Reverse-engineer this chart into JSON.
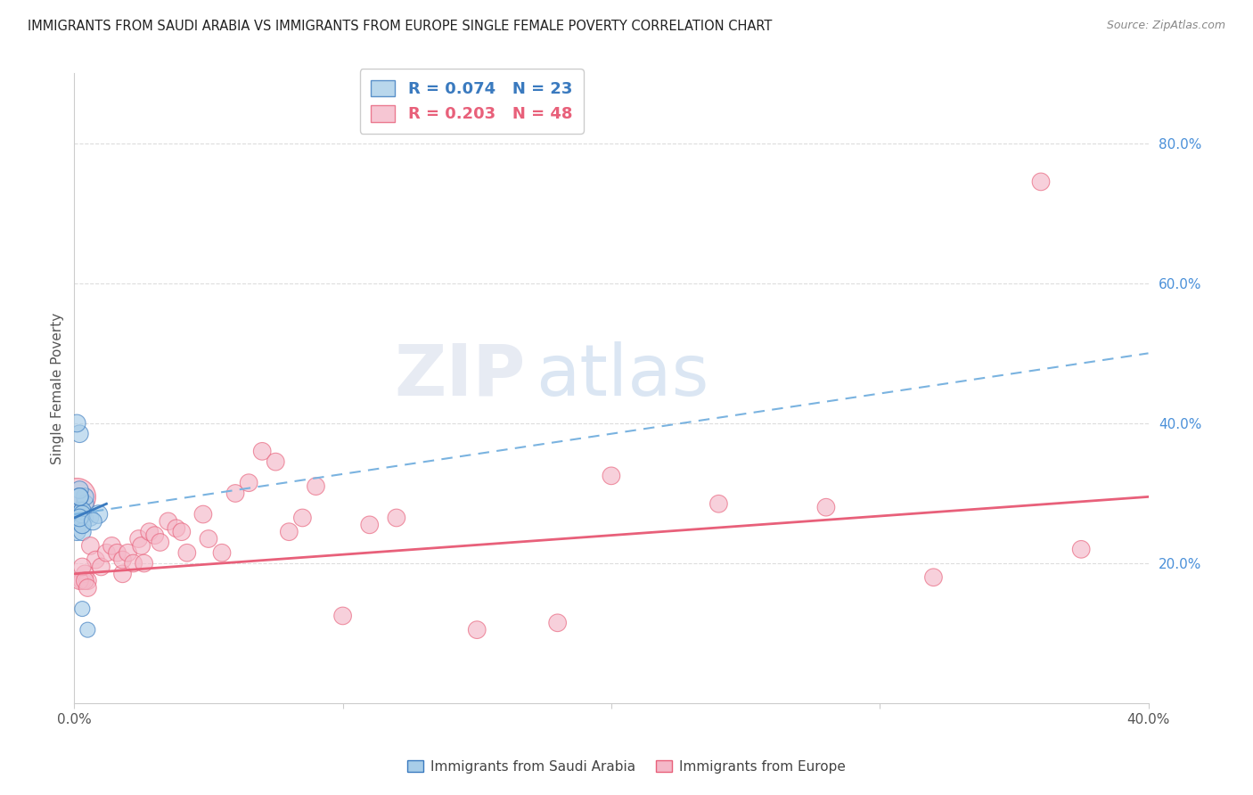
{
  "title": "IMMIGRANTS FROM SAUDI ARABIA VS IMMIGRANTS FROM EUROPE SINGLE FEMALE POVERTY CORRELATION CHART",
  "source": "Source: ZipAtlas.com",
  "ylabel": "Single Female Poverty",
  "y_ticks_right": [
    0.2,
    0.4,
    0.6,
    0.8
  ],
  "y_tick_labels_right": [
    "20.0%",
    "40.0%",
    "60.0%",
    "80.0%"
  ],
  "xlim": [
    0.0,
    0.4
  ],
  "ylim": [
    0.0,
    0.9
  ],
  "legend_entries": [
    {
      "label": "R = 0.074   N = 23",
      "color": "#a8cde8"
    },
    {
      "label": "R = 0.203   N = 48",
      "color": "#f4b8c8"
    }
  ],
  "footer_labels": [
    "Immigrants from Saudi Arabia",
    "Immigrants from Europe"
  ],
  "footer_colors": [
    "#a8cde8",
    "#f4b8c8"
  ],
  "watermark_zip": "ZIP",
  "watermark_atlas": "atlas",
  "blue_scatter_x": [
    0.004,
    0.006,
    0.002,
    0.003,
    0.004,
    0.001,
    0.002,
    0.003,
    0.004,
    0.003,
    0.002,
    0.002,
    0.003,
    0.003,
    0.002,
    0.001,
    0.002,
    0.003,
    0.002,
    0.003,
    0.005,
    0.009,
    0.007
  ],
  "blue_scatter_y": [
    0.265,
    0.265,
    0.275,
    0.275,
    0.285,
    0.245,
    0.265,
    0.255,
    0.295,
    0.275,
    0.305,
    0.295,
    0.27,
    0.245,
    0.385,
    0.4,
    0.295,
    0.255,
    0.265,
    0.135,
    0.105,
    0.27,
    0.26
  ],
  "blue_scatter_sizes": [
    180,
    180,
    200,
    200,
    200,
    200,
    200,
    200,
    200,
    200,
    200,
    200,
    200,
    200,
    200,
    200,
    200,
    200,
    200,
    150,
    150,
    220,
    200
  ],
  "pink_scatter_x": [
    0.003,
    0.004,
    0.005,
    0.006,
    0.008,
    0.01,
    0.012,
    0.014,
    0.016,
    0.018,
    0.018,
    0.02,
    0.022,
    0.024,
    0.025,
    0.026,
    0.028,
    0.03,
    0.032,
    0.035,
    0.038,
    0.04,
    0.042,
    0.048,
    0.05,
    0.055,
    0.06,
    0.065,
    0.07,
    0.075,
    0.08,
    0.085,
    0.09,
    0.1,
    0.11,
    0.12,
    0.15,
    0.18,
    0.2,
    0.24,
    0.28,
    0.32,
    0.36,
    0.375,
    0.002,
    0.003,
    0.004,
    0.005
  ],
  "pink_scatter_y": [
    0.175,
    0.185,
    0.175,
    0.225,
    0.205,
    0.195,
    0.215,
    0.225,
    0.215,
    0.185,
    0.205,
    0.215,
    0.2,
    0.235,
    0.225,
    0.2,
    0.245,
    0.24,
    0.23,
    0.26,
    0.25,
    0.245,
    0.215,
    0.27,
    0.235,
    0.215,
    0.3,
    0.315,
    0.36,
    0.345,
    0.245,
    0.265,
    0.31,
    0.125,
    0.255,
    0.265,
    0.105,
    0.115,
    0.325,
    0.285,
    0.28,
    0.18,
    0.745,
    0.22,
    0.175,
    0.195,
    0.175,
    0.165
  ],
  "pink_scatter_sizes": [
    200,
    200,
    200,
    200,
    200,
    200,
    200,
    200,
    200,
    200,
    200,
    200,
    200,
    200,
    200,
    200,
    200,
    200,
    200,
    200,
    200,
    200,
    200,
    200,
    200,
    200,
    200,
    200,
    200,
    200,
    200,
    200,
    200,
    200,
    200,
    200,
    200,
    200,
    200,
    200,
    200,
    200,
    200,
    200,
    200,
    200,
    200,
    200
  ],
  "pink_big_x": [
    0.001
  ],
  "pink_big_y": [
    0.295
  ],
  "pink_big_size": [
    900
  ],
  "blue_line_x": [
    0.0,
    0.012
  ],
  "blue_line_y": [
    0.265,
    0.285
  ],
  "blue_dashed_line_x": [
    0.0,
    0.4
  ],
  "blue_dashed_line_y": [
    0.27,
    0.5
  ],
  "pink_line_x": [
    0.0,
    0.4
  ],
  "pink_line_y": [
    0.185,
    0.295
  ],
  "blue_color": "#a8cde8",
  "pink_color": "#f4b8c8",
  "blue_solid_line_color": "#3a7abf",
  "blue_dashed_line_color": "#7ab3e0",
  "pink_line_color": "#e8607a",
  "grid_color": "#dddddd",
  "background_color": "#ffffff"
}
